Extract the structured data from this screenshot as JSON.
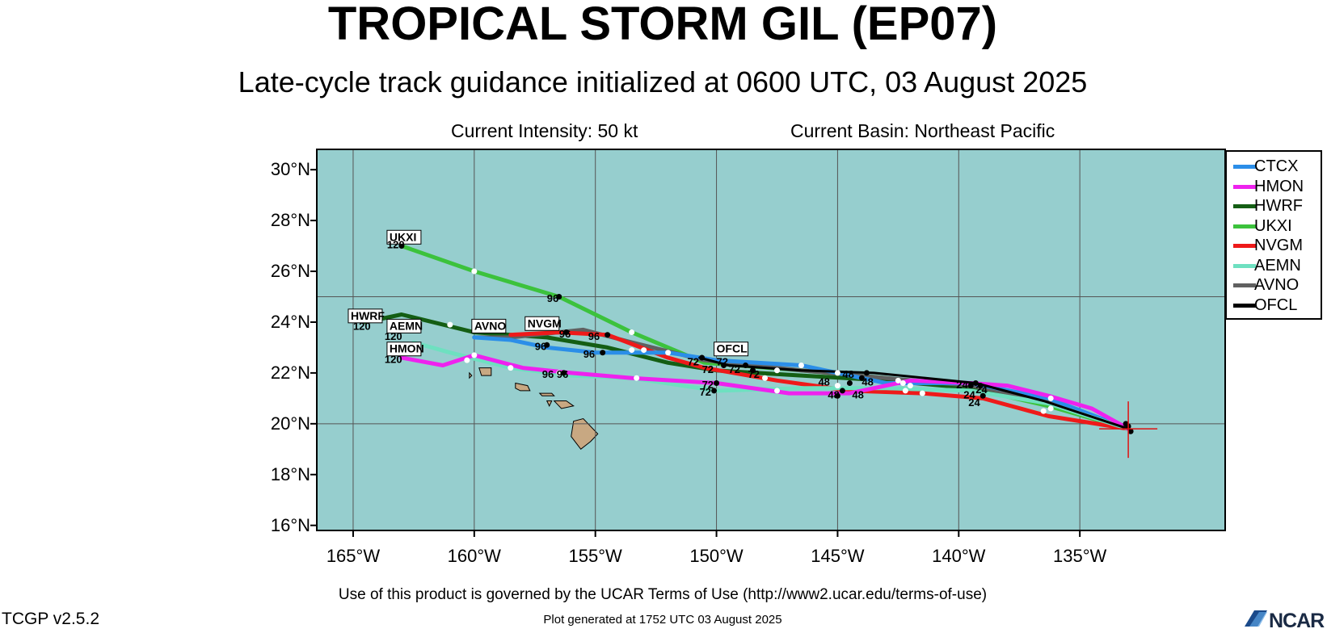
{
  "header": {
    "title": "TROPICAL STORM GIL (EP07)",
    "subtitle": "Late-cycle track guidance initialized at 0600 UTC, 03 August 2025",
    "intensity": "Current Intensity: 50 kt",
    "basin": "Current Basin: Northeast Pacific"
  },
  "footer": {
    "terms": "Use of this product is governed by the UCAR Terms of Use (http://www2.ucar.edu/terms-of-use)",
    "version": "TCGP v2.5.2",
    "generated": "Plot generated at 1752 UTC   03 August 2025",
    "logo_text": "NCAR"
  },
  "map": {
    "lon_range": [
      -166.5,
      -129
    ],
    "lat_range": [
      15.8,
      30.8
    ],
    "lat_ticks": [
      {
        "value": 16,
        "label": "16°N"
      },
      {
        "value": 18,
        "label": "18°N"
      },
      {
        "value": 20,
        "label": "20°N"
      },
      {
        "value": 22,
        "label": "22°N"
      },
      {
        "value": 24,
        "label": "24°N"
      },
      {
        "value": 26,
        "label": "26°N"
      },
      {
        "value": 28,
        "label": "28°N"
      },
      {
        "value": 30,
        "label": "30°N"
      }
    ],
    "lon_ticks": [
      {
        "value": -165,
        "label": "165°W"
      },
      {
        "value": -160,
        "label": "160°W"
      },
      {
        "value": -155,
        "label": "155°W"
      },
      {
        "value": -150,
        "label": "150°W"
      },
      {
        "value": -145,
        "label": "145°W"
      },
      {
        "value": -140,
        "label": "140°W"
      },
      {
        "value": -135,
        "label": "135°W"
      }
    ],
    "gridlines_lon": [
      -165,
      -160,
      -155,
      -150,
      -145,
      -140,
      -135
    ],
    "gridlines_lat": [
      20,
      25
    ],
    "ocean_color": "#96cece",
    "land_color": "#c8a882",
    "storm_position": {
      "lon": -133,
      "lat": 19.8
    },
    "storm_marker_color": "#e01010"
  },
  "legend": {
    "items": [
      {
        "name": "CTCX",
        "color": "#2b8ee8"
      },
      {
        "name": "HMON",
        "color": "#ee22ee"
      },
      {
        "name": "HWRF",
        "color": "#145e14"
      },
      {
        "name": "UKXI",
        "color": "#3cc23c"
      },
      {
        "name": "NVGM",
        "color": "#ee1a1a"
      },
      {
        "name": "AEMN",
        "color": "#6ee0c0"
      },
      {
        "name": "AVNO",
        "color": "#606060"
      },
      {
        "name": "OFCL",
        "color": "#000000"
      }
    ]
  },
  "tracks": [
    {
      "name": "UKXI",
      "color": "#3cc23c",
      "points": [
        [
          -133,
          19.8
        ],
        [
          -136.3,
          20.7
        ],
        [
          -139.5,
          21.4
        ],
        [
          -143,
          21.8
        ],
        [
          -146.5,
          22.1
        ],
        [
          -150.5,
          22.4
        ],
        [
          -153.5,
          23.6
        ],
        [
          -156.5,
          25.0
        ],
        [
          -160,
          26.0
        ],
        [
          -163,
          27.0
        ]
      ]
    },
    {
      "name": "HWRF",
      "color": "#145e14",
      "points": [
        [
          -133,
          19.8
        ],
        [
          -136.3,
          20.9
        ],
        [
          -139.5,
          21.4
        ],
        [
          -143,
          21.7
        ],
        [
          -146.5,
          21.9
        ],
        [
          -150,
          22.1
        ],
        [
          -152,
          22.4
        ],
        [
          -154.5,
          23.0
        ],
        [
          -157,
          23.4
        ],
        [
          -160,
          23.6
        ],
        [
          -163,
          24.3
        ],
        [
          -164.5,
          24.0
        ]
      ]
    },
    {
      "name": "AVNO",
      "color": "#606060",
      "points": [
        [
          -133,
          19.8
        ],
        [
          -136.3,
          20.9
        ],
        [
          -139.5,
          21.5
        ],
        [
          -143,
          21.8
        ],
        [
          -146.5,
          22.1
        ],
        [
          -150.5,
          22.5
        ],
        [
          -153.5,
          23.2
        ],
        [
          -155.5,
          23.7
        ],
        [
          -158.5,
          23.4
        ],
        [
          -160,
          23.4
        ]
      ]
    },
    {
      "name": "NVGM",
      "color": "#ee1a1a",
      "points": [
        [
          -133,
          19.8
        ],
        [
          -136.3,
          20.3
        ],
        [
          -139,
          21.0
        ],
        [
          -141.5,
          21.2
        ],
        [
          -144.5,
          21.3
        ],
        [
          -147.5,
          21.7
        ],
        [
          -150.5,
          22.2
        ],
        [
          -152,
          22.6
        ],
        [
          -154.5,
          23.5
        ],
        [
          -156.5,
          23.6
        ],
        [
          -158.5,
          23.5
        ]
      ]
    },
    {
      "name": "CTCX",
      "color": "#2b8ee8",
      "points": [
        [
          -133,
          19.8
        ],
        [
          -136.3,
          21.0
        ],
        [
          -139.5,
          21.6
        ],
        [
          -143,
          21.6
        ],
        [
          -146.5,
          22.3
        ],
        [
          -150,
          22.5
        ],
        [
          -152,
          22.8
        ],
        [
          -155,
          22.8
        ],
        [
          -157,
          23.0
        ],
        [
          -158.5,
          23.3
        ],
        [
          -160,
          23.4
        ]
      ]
    },
    {
      "name": "AEMN",
      "color": "#6ee0c0",
      "points": [
        [
          -133,
          19.8
        ],
        [
          -136.3,
          20.8
        ],
        [
          -139.5,
          21.3
        ],
        [
          -143,
          21.4
        ],
        [
          -146.5,
          21.4
        ],
        [
          -150,
          21.3
        ],
        [
          -153.5,
          21.8
        ],
        [
          -156,
          21.9
        ],
        [
          -158.5,
          22.2
        ],
        [
          -161,
          22.8
        ],
        [
          -162.5,
          23.2
        ]
      ]
    },
    {
      "name": "HMON",
      "color": "#ee22ee",
      "points": [
        [
          -133,
          19.8
        ],
        [
          -134.5,
          20.6
        ],
        [
          -136.3,
          21.1
        ],
        [
          -138,
          21.5
        ],
        [
          -139.5,
          21.6
        ],
        [
          -142,
          21.7
        ],
        [
          -144.5,
          21.2
        ],
        [
          -147,
          21.2
        ],
        [
          -150,
          21.6
        ],
        [
          -153.5,
          21.8
        ],
        [
          -156,
          22.0
        ],
        [
          -158,
          22.2
        ],
        [
          -160,
          22.7
        ],
        [
          -161.3,
          22.3
        ],
        [
          -163,
          22.6
        ]
      ]
    },
    {
      "name": "OFCL",
      "color": "#000000",
      "points": [
        [
          -133,
          19.8
        ],
        [
          -136.5,
          20.9
        ],
        [
          -139.3,
          21.6
        ],
        [
          -143.5,
          22.0
        ],
        [
          -146.5,
          22.1
        ],
        [
          -149.5,
          22.3
        ],
        [
          -150.7,
          22.6
        ]
      ]
    }
  ],
  "white_dots": [
    [
      -136.2,
      21.0
    ],
    [
      -136.2,
      20.6
    ],
    [
      -136.5,
      20.5
    ],
    [
      -141.5,
      21.2
    ],
    [
      -142,
      21.5
    ],
    [
      -142.5,
      21.7
    ],
    [
      -145,
      22.0
    ],
    [
      -146.5,
      22.3
    ],
    [
      -147.5,
      22.1
    ],
    [
      -148,
      21.8
    ],
    [
      -147.5,
      21.3
    ],
    [
      -152,
      22.8
    ],
    [
      -153,
      22.9
    ],
    [
      -153.5,
      22.9
    ],
    [
      -153.5,
      23.6
    ],
    [
      -153.3,
      21.8
    ],
    [
      -156.5,
      22.0
    ],
    [
      -158.5,
      22.2
    ],
    [
      -160,
      22.7
    ],
    [
      -160.3,
      22.5
    ],
    [
      -161,
      23.9
    ],
    [
      -160,
      26.0
    ],
    [
      -142.2,
      21.3
    ],
    [
      -142.3,
      21.6
    ],
    [
      -145,
      21.5
    ]
  ],
  "black_dots": [
    [
      -133,
      19.9
    ],
    [
      -133.1,
      20.0
    ],
    [
      -132.9,
      19.7
    ],
    [
      -139.3,
      21.6
    ],
    [
      -139.5,
      21.5
    ],
    [
      -139.1,
      21.5
    ],
    [
      -139,
      21.1
    ],
    [
      -143.8,
      22.0
    ],
    [
      -144,
      21.8
    ],
    [
      -144.5,
      21.6
    ],
    [
      -144.8,
      21.3
    ],
    [
      -145,
      21.1
    ],
    [
      -148.5,
      22.1
    ],
    [
      -148.8,
      22.3
    ],
    [
      -149.7,
      22.3
    ],
    [
      -150.6,
      22.6
    ],
    [
      -150,
      21.6
    ],
    [
      -150.1,
      21.3
    ],
    [
      -154.5,
      23.5
    ],
    [
      -154.7,
      22.8
    ],
    [
      -156.2,
      23.6
    ],
    [
      -157,
      23.1
    ],
    [
      -156.3,
      22.0
    ],
    [
      -156.5,
      25.0
    ],
    [
      -163,
      27.0
    ]
  ],
  "landmasses": [
    {
      "name": "hawaii-big-island",
      "points": [
        [
          -155.9,
          20.1
        ],
        [
          -155.5,
          20.2
        ],
        [
          -154.9,
          19.6
        ],
        [
          -155.2,
          19.3
        ],
        [
          -155.6,
          19.0
        ],
        [
          -156.0,
          19.5
        ]
      ]
    },
    {
      "name": "maui",
      "points": [
        [
          -156.7,
          20.9
        ],
        [
          -156.2,
          20.9
        ],
        [
          -155.9,
          20.7
        ],
        [
          -156.4,
          20.6
        ],
        [
          -156.6,
          20.8
        ]
      ]
    },
    {
      "name": "molokai",
      "points": [
        [
          -157.3,
          21.2
        ],
        [
          -156.8,
          21.2
        ],
        [
          -156.7,
          21.1
        ],
        [
          -157.2,
          21.1
        ]
      ]
    },
    {
      "name": "lanai",
      "points": [
        [
          -157.0,
          20.9
        ],
        [
          -156.8,
          20.9
        ],
        [
          -156.9,
          20.7
        ]
      ]
    },
    {
      "name": "oahu",
      "points": [
        [
          -158.3,
          21.6
        ],
        [
          -157.8,
          21.5
        ],
        [
          -157.7,
          21.3
        ],
        [
          -158.1,
          21.3
        ],
        [
          -158.3,
          21.4
        ]
      ]
    },
    {
      "name": "kauai",
      "points": [
        [
          -159.8,
          22.2
        ],
        [
          -159.3,
          22.2
        ],
        [
          -159.3,
          21.9
        ],
        [
          -159.7,
          21.9
        ]
      ]
    },
    {
      "name": "niihau",
      "points": [
        [
          -160.2,
          22.0
        ],
        [
          -160.1,
          21.9
        ],
        [
          -160.2,
          21.8
        ]
      ]
    }
  ],
  "map_labels": [
    {
      "text": "UKXI",
      "lon": -163.5,
      "lat": 27.2,
      "boxed": true
    },
    {
      "text": "120",
      "lon": -163.6,
      "lat": 26.9,
      "boxed": false
    },
    {
      "text": "HWRF",
      "lon": -165.1,
      "lat": 24.1,
      "boxed": true
    },
    {
      "text": "120",
      "lon": -165.0,
      "lat": 23.7,
      "boxed": false
    },
    {
      "text": "AEMN",
      "lon": -163.5,
      "lat": 23.7,
      "boxed": true
    },
    {
      "text": "120",
      "lon": -163.7,
      "lat": 23.3,
      "boxed": false
    },
    {
      "text": "HMON",
      "lon": -163.5,
      "lat": 22.8,
      "boxed": true
    },
    {
      "text": "120",
      "lon": -163.7,
      "lat": 22.4,
      "boxed": false
    },
    {
      "text": "AVNO",
      "lon": -160.0,
      "lat": 23.7,
      "boxed": true
    },
    {
      "text": "NVGM",
      "lon": -157.8,
      "lat": 23.8,
      "boxed": true
    },
    {
      "text": "OFCL",
      "lon": -150.0,
      "lat": 22.8,
      "boxed": true
    },
    {
      "text": "96",
      "lon": -157.0,
      "lat": 24.8,
      "boxed": false
    },
    {
      "text": "96",
      "lon": -157.5,
      "lat": 22.9,
      "boxed": false
    },
    {
      "text": "96",
      "lon": -156.5,
      "lat": 23.4,
      "boxed": false
    },
    {
      "text": "96",
      "lon": -155.3,
      "lat": 23.3,
      "boxed": false
    },
    {
      "text": "96",
      "lon": -155.5,
      "lat": 22.6,
      "boxed": false
    },
    {
      "text": "96",
      "lon": -157.2,
      "lat": 21.8,
      "boxed": false
    },
    {
      "text": "96",
      "lon": -156.6,
      "lat": 21.8,
      "boxed": false
    },
    {
      "text": "72",
      "lon": -151.2,
      "lat": 22.3,
      "boxed": false
    },
    {
      "text": "72",
      "lon": -150.6,
      "lat": 22.0,
      "boxed": false
    },
    {
      "text": "72",
      "lon": -150.0,
      "lat": 22.3,
      "boxed": false
    },
    {
      "text": "72",
      "lon": -149.5,
      "lat": 22.0,
      "boxed": false
    },
    {
      "text": "72",
      "lon": -148.7,
      "lat": 21.8,
      "boxed": false
    },
    {
      "text": "72",
      "lon": -150.6,
      "lat": 21.4,
      "boxed": false
    },
    {
      "text": "72",
      "lon": -150.7,
      "lat": 21.1,
      "boxed": false
    },
    {
      "text": "48",
      "lon": -145.8,
      "lat": 21.5,
      "boxed": false
    },
    {
      "text": "48",
      "lon": -144.8,
      "lat": 21.8,
      "boxed": false
    },
    {
      "text": "48",
      "lon": -144.0,
      "lat": 21.5,
      "boxed": false
    },
    {
      "text": "48",
      "lon": -145.4,
      "lat": 21.0,
      "boxed": false
    },
    {
      "text": "48",
      "lon": -144.4,
      "lat": 21.0,
      "boxed": false
    },
    {
      "text": "24",
      "lon": -140.1,
      "lat": 21.4,
      "boxed": false
    },
    {
      "text": "24",
      "lon": -139.3,
      "lat": 21.2,
      "boxed": false
    },
    {
      "text": "24",
      "lon": -139.8,
      "lat": 21.0,
      "boxed": false
    },
    {
      "text": "24",
      "lon": -139.6,
      "lat": 20.7,
      "boxed": false
    }
  ]
}
